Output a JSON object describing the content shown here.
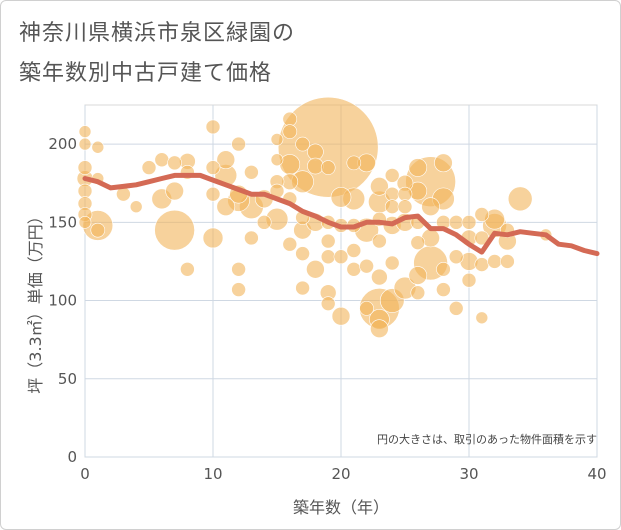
{
  "title_line1": "神奈川県横浜市泉区緑園の",
  "title_line2": "築年数別中古戸建て価格",
  "chart_data": {
    "type": "scatter",
    "title": "神奈川県横浜市泉区緑園の築年数別中古戸建て価格",
    "xlabel": "築年数（年）",
    "ylabel": "坪（3.3㎡）単価（万円）",
    "xlim": [
      0,
      40
    ],
    "ylim": [
      0,
      225
    ],
    "xticks": [
      0,
      10,
      20,
      30,
      40
    ],
    "yticks": [
      0,
      50,
      100,
      150,
      200
    ],
    "note": "円の大きさは、取引のあった物件面積を示す",
    "bubble_color": "#f2b45a",
    "line_color": "#d46a55",
    "bubbles": [
      {
        "x": 0,
        "y": 208,
        "s": 6
      },
      {
        "x": 0,
        "y": 200,
        "s": 6
      },
      {
        "x": 0,
        "y": 185,
        "s": 7
      },
      {
        "x": 0,
        "y": 178,
        "s": 8
      },
      {
        "x": 0,
        "y": 170,
        "s": 7
      },
      {
        "x": 0,
        "y": 162,
        "s": 7
      },
      {
        "x": 0,
        "y": 155,
        "s": 7
      },
      {
        "x": 0,
        "y": 150,
        "s": 6
      },
      {
        "x": 1,
        "y": 198,
        "s": 6
      },
      {
        "x": 1,
        "y": 178,
        "s": 6
      },
      {
        "x": 1,
        "y": 148,
        "s": 15
      },
      {
        "x": 1,
        "y": 145,
        "s": 7
      },
      {
        "x": 3,
        "y": 168,
        "s": 7
      },
      {
        "x": 4,
        "y": 160,
        "s": 6
      },
      {
        "x": 5,
        "y": 185,
        "s": 7
      },
      {
        "x": 6,
        "y": 190,
        "s": 7
      },
      {
        "x": 6,
        "y": 165,
        "s": 10
      },
      {
        "x": 7,
        "y": 188,
        "s": 7
      },
      {
        "x": 7,
        "y": 170,
        "s": 9
      },
      {
        "x": 7,
        "y": 145,
        "s": 20
      },
      {
        "x": 8,
        "y": 189,
        "s": 8
      },
      {
        "x": 8,
        "y": 182,
        "s": 7
      },
      {
        "x": 8,
        "y": 120,
        "s": 7
      },
      {
        "x": 10,
        "y": 211,
        "s": 7
      },
      {
        "x": 10,
        "y": 185,
        "s": 7
      },
      {
        "x": 10,
        "y": 168,
        "s": 7
      },
      {
        "x": 10,
        "y": 140,
        "s": 10
      },
      {
        "x": 11,
        "y": 190,
        "s": 9
      },
      {
        "x": 11,
        "y": 180,
        "s": 11
      },
      {
        "x": 11,
        "y": 160,
        "s": 9
      },
      {
        "x": 12,
        "y": 200,
        "s": 7
      },
      {
        "x": 12,
        "y": 168,
        "s": 9
      },
      {
        "x": 12,
        "y": 164,
        "s": 11
      },
      {
        "x": 12,
        "y": 120,
        "s": 7
      },
      {
        "x": 12,
        "y": 107,
        "s": 7
      },
      {
        "x": 13,
        "y": 182,
        "s": 7
      },
      {
        "x": 13,
        "y": 160,
        "s": 12
      },
      {
        "x": 13,
        "y": 140,
        "s": 7
      },
      {
        "x": 14,
        "y": 165,
        "s": 9
      },
      {
        "x": 14,
        "y": 150,
        "s": 7
      },
      {
        "x": 15,
        "y": 203,
        "s": 6
      },
      {
        "x": 15,
        "y": 190,
        "s": 6
      },
      {
        "x": 15,
        "y": 176,
        "s": 7
      },
      {
        "x": 15,
        "y": 170,
        "s": 7
      },
      {
        "x": 15,
        "y": 152,
        "s": 11
      },
      {
        "x": 16,
        "y": 216,
        "s": 7
      },
      {
        "x": 16,
        "y": 208,
        "s": 7
      },
      {
        "x": 16,
        "y": 187,
        "s": 10
      },
      {
        "x": 16,
        "y": 176,
        "s": 8
      },
      {
        "x": 16,
        "y": 165,
        "s": 7
      },
      {
        "x": 16,
        "y": 136,
        "s": 7
      },
      {
        "x": 17,
        "y": 200,
        "s": 7
      },
      {
        "x": 17,
        "y": 176,
        "s": 11
      },
      {
        "x": 17,
        "y": 153,
        "s": 7
      },
      {
        "x": 17,
        "y": 145,
        "s": 9
      },
      {
        "x": 17,
        "y": 130,
        "s": 7
      },
      {
        "x": 17,
        "y": 108,
        "s": 7
      },
      {
        "x": 18,
        "y": 195,
        "s": 8
      },
      {
        "x": 18,
        "y": 186,
        "s": 8
      },
      {
        "x": 18,
        "y": 150,
        "s": 9
      },
      {
        "x": 18,
        "y": 120,
        "s": 9
      },
      {
        "x": 19,
        "y": 198,
        "s": 50
      },
      {
        "x": 19,
        "y": 185,
        "s": 7
      },
      {
        "x": 19,
        "y": 150,
        "s": 7
      },
      {
        "x": 19,
        "y": 138,
        "s": 7
      },
      {
        "x": 19,
        "y": 128,
        "s": 7
      },
      {
        "x": 19,
        "y": 105,
        "s": 8
      },
      {
        "x": 19,
        "y": 98,
        "s": 7
      },
      {
        "x": 20,
        "y": 166,
        "s": 10
      },
      {
        "x": 20,
        "y": 148,
        "s": 7
      },
      {
        "x": 20,
        "y": 128,
        "s": 7
      },
      {
        "x": 20,
        "y": 90,
        "s": 9
      },
      {
        "x": 21,
        "y": 188,
        "s": 7
      },
      {
        "x": 21,
        "y": 165,
        "s": 11
      },
      {
        "x": 21,
        "y": 148,
        "s": 7
      },
      {
        "x": 21,
        "y": 132,
        "s": 7
      },
      {
        "x": 21,
        "y": 120,
        "s": 7
      },
      {
        "x": 22,
        "y": 188,
        "s": 9
      },
      {
        "x": 22,
        "y": 145,
        "s": 12
      },
      {
        "x": 22,
        "y": 122,
        "s": 7
      },
      {
        "x": 22,
        "y": 95,
        "s": 7
      },
      {
        "x": 23,
        "y": 173,
        "s": 9
      },
      {
        "x": 23,
        "y": 163,
        "s": 11
      },
      {
        "x": 23,
        "y": 152,
        "s": 7
      },
      {
        "x": 23,
        "y": 138,
        "s": 7
      },
      {
        "x": 23,
        "y": 115,
        "s": 8
      },
      {
        "x": 23,
        "y": 95,
        "s": 20
      },
      {
        "x": 23,
        "y": 88,
        "s": 10
      },
      {
        "x": 23,
        "y": 82,
        "s": 9
      },
      {
        "x": 24,
        "y": 180,
        "s": 7
      },
      {
        "x": 24,
        "y": 168,
        "s": 7
      },
      {
        "x": 24,
        "y": 160,
        "s": 7
      },
      {
        "x": 24,
        "y": 148,
        "s": 9
      },
      {
        "x": 24,
        "y": 124,
        "s": 7
      },
      {
        "x": 24,
        "y": 100,
        "s": 12
      },
      {
        "x": 25,
        "y": 175,
        "s": 8
      },
      {
        "x": 25,
        "y": 168,
        "s": 7
      },
      {
        "x": 25,
        "y": 160,
        "s": 7
      },
      {
        "x": 25,
        "y": 150,
        "s": 9
      },
      {
        "x": 25,
        "y": 108,
        "s": 11
      },
      {
        "x": 26,
        "y": 185,
        "s": 9
      },
      {
        "x": 26,
        "y": 170,
        "s": 9
      },
      {
        "x": 26,
        "y": 150,
        "s": 7
      },
      {
        "x": 26,
        "y": 137,
        "s": 7
      },
      {
        "x": 26,
        "y": 116,
        "s": 9
      },
      {
        "x": 26,
        "y": 105,
        "s": 7
      },
      {
        "x": 27,
        "y": 176,
        "s": 25
      },
      {
        "x": 27,
        "y": 160,
        "s": 9
      },
      {
        "x": 27,
        "y": 140,
        "s": 9
      },
      {
        "x": 27,
        "y": 124,
        "s": 17
      },
      {
        "x": 28,
        "y": 188,
        "s": 9
      },
      {
        "x": 28,
        "y": 165,
        "s": 11
      },
      {
        "x": 28,
        "y": 150,
        "s": 7
      },
      {
        "x": 28,
        "y": 120,
        "s": 7
      },
      {
        "x": 28,
        "y": 107,
        "s": 7
      },
      {
        "x": 29,
        "y": 150,
        "s": 7
      },
      {
        "x": 29,
        "y": 128,
        "s": 7
      },
      {
        "x": 29,
        "y": 95,
        "s": 7
      },
      {
        "x": 30,
        "y": 150,
        "s": 7
      },
      {
        "x": 30,
        "y": 140,
        "s": 8
      },
      {
        "x": 30,
        "y": 125,
        "s": 9
      },
      {
        "x": 30,
        "y": 113,
        "s": 7
      },
      {
        "x": 31,
        "y": 155,
        "s": 7
      },
      {
        "x": 31,
        "y": 140,
        "s": 7
      },
      {
        "x": 31,
        "y": 123,
        "s": 7
      },
      {
        "x": 31,
        "y": 89,
        "s": 6
      },
      {
        "x": 32,
        "y": 152,
        "s": 10
      },
      {
        "x": 32,
        "y": 148,
        "s": 12
      },
      {
        "x": 32,
        "y": 125,
        "s": 7
      },
      {
        "x": 33,
        "y": 145,
        "s": 7
      },
      {
        "x": 33,
        "y": 138,
        "s": 9
      },
      {
        "x": 33,
        "y": 125,
        "s": 7
      },
      {
        "x": 34,
        "y": 165,
        "s": 12
      },
      {
        "x": 36,
        "y": 142,
        "s": 6
      }
    ],
    "line": {
      "x": [
        0,
        1,
        2,
        3,
        4,
        5,
        6,
        7,
        8,
        9,
        10,
        11,
        12,
        13,
        14,
        15,
        16,
        17,
        18,
        19,
        20,
        21,
        22,
        23,
        24,
        25,
        26,
        27,
        28,
        29,
        30,
        31,
        32,
        33,
        34,
        35,
        36,
        37,
        38,
        39,
        40
      ],
      "y": [
        178,
        176,
        172,
        173,
        174,
        176,
        178,
        180,
        180,
        180,
        177,
        174,
        171,
        168,
        168,
        165,
        162,
        157,
        154,
        150,
        147,
        147,
        150,
        150,
        149,
        153,
        154,
        146,
        146,
        142,
        136,
        131,
        143,
        142,
        144,
        143,
        142,
        136,
        135,
        132,
        130
      ]
    }
  }
}
